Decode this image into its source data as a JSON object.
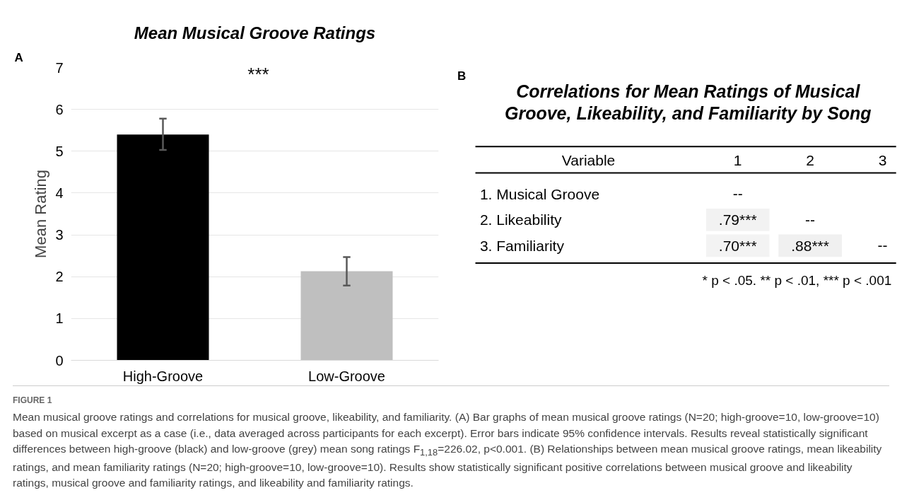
{
  "chart_data": [
    {
      "type": "bar",
      "title": "Mean Musical Groove Ratings",
      "ylabel": "Mean Rating",
      "categories": [
        "High-Groove",
        "Low-Groove"
      ],
      "values": [
        5.4,
        2.13
      ],
      "colors": [
        "#000000",
        "#bfbfbf"
      ],
      "errors": [
        [
          5.03,
          5.78
        ],
        [
          1.79,
          2.47
        ]
      ],
      "ylim": [
        0,
        7
      ],
      "yticks": [
        0,
        1,
        2,
        3,
        4,
        5,
        6,
        7
      ],
      "grid": "y",
      "annotations": [
        "A",
        "***"
      ]
    },
    {
      "type": "heatmap",
      "title": "Correlations for Mean Ratings of Musical\nGroove, Likeability, and Familiarity by Song",
      "ylabel": "Variable",
      "categories": [
        "1",
        "2",
        "3"
      ],
      "y_categories": [
        "1. Musical Groove",
        "2. Likeability",
        "3. Familiarity"
      ],
      "cells": [
        [
          null,
          null,
          null
        ],
        [
          0.79,
          null,
          null
        ],
        [
          0.7,
          0.88,
          null
        ]
      ],
      "cell_labels": [
        [
          "--",
          null,
          null
        ],
        [
          ".79***",
          "--",
          null
        ],
        [
          ".70***",
          ".88***",
          "--"
        ]
      ],
      "annotations": [
        "B",
        "* p < .05. ** p < .01, *** p < .001",
        "FIGURE 1",
        "Mean musical groove ratings and correlations for musical groove, likeability, and familiarity. (A) Bar graphs of mean musical groove ratings (N=20; high-groove=10, low-groove=10) based on musical excerpt as a case (i.e., data averaged across participants for each excerpt). Error bars indicate 95% confidence intervals. Results reveal statistically significant differences between high-groove (black) and low-groove (grey) mean song ratings F$_{1,18}$=226.02, p<0.001. (B) Relationships between mean musical groove ratings, mean likeability ratings, and mean familiarity ratings (N=20; high-groove=10, low-groove=10). Results show statistically significant positive correlations between musical groove and likeability ratings, musical groove and familiarity ratings, and likeability and familiarity ratings."
      ]
    }
  ]
}
